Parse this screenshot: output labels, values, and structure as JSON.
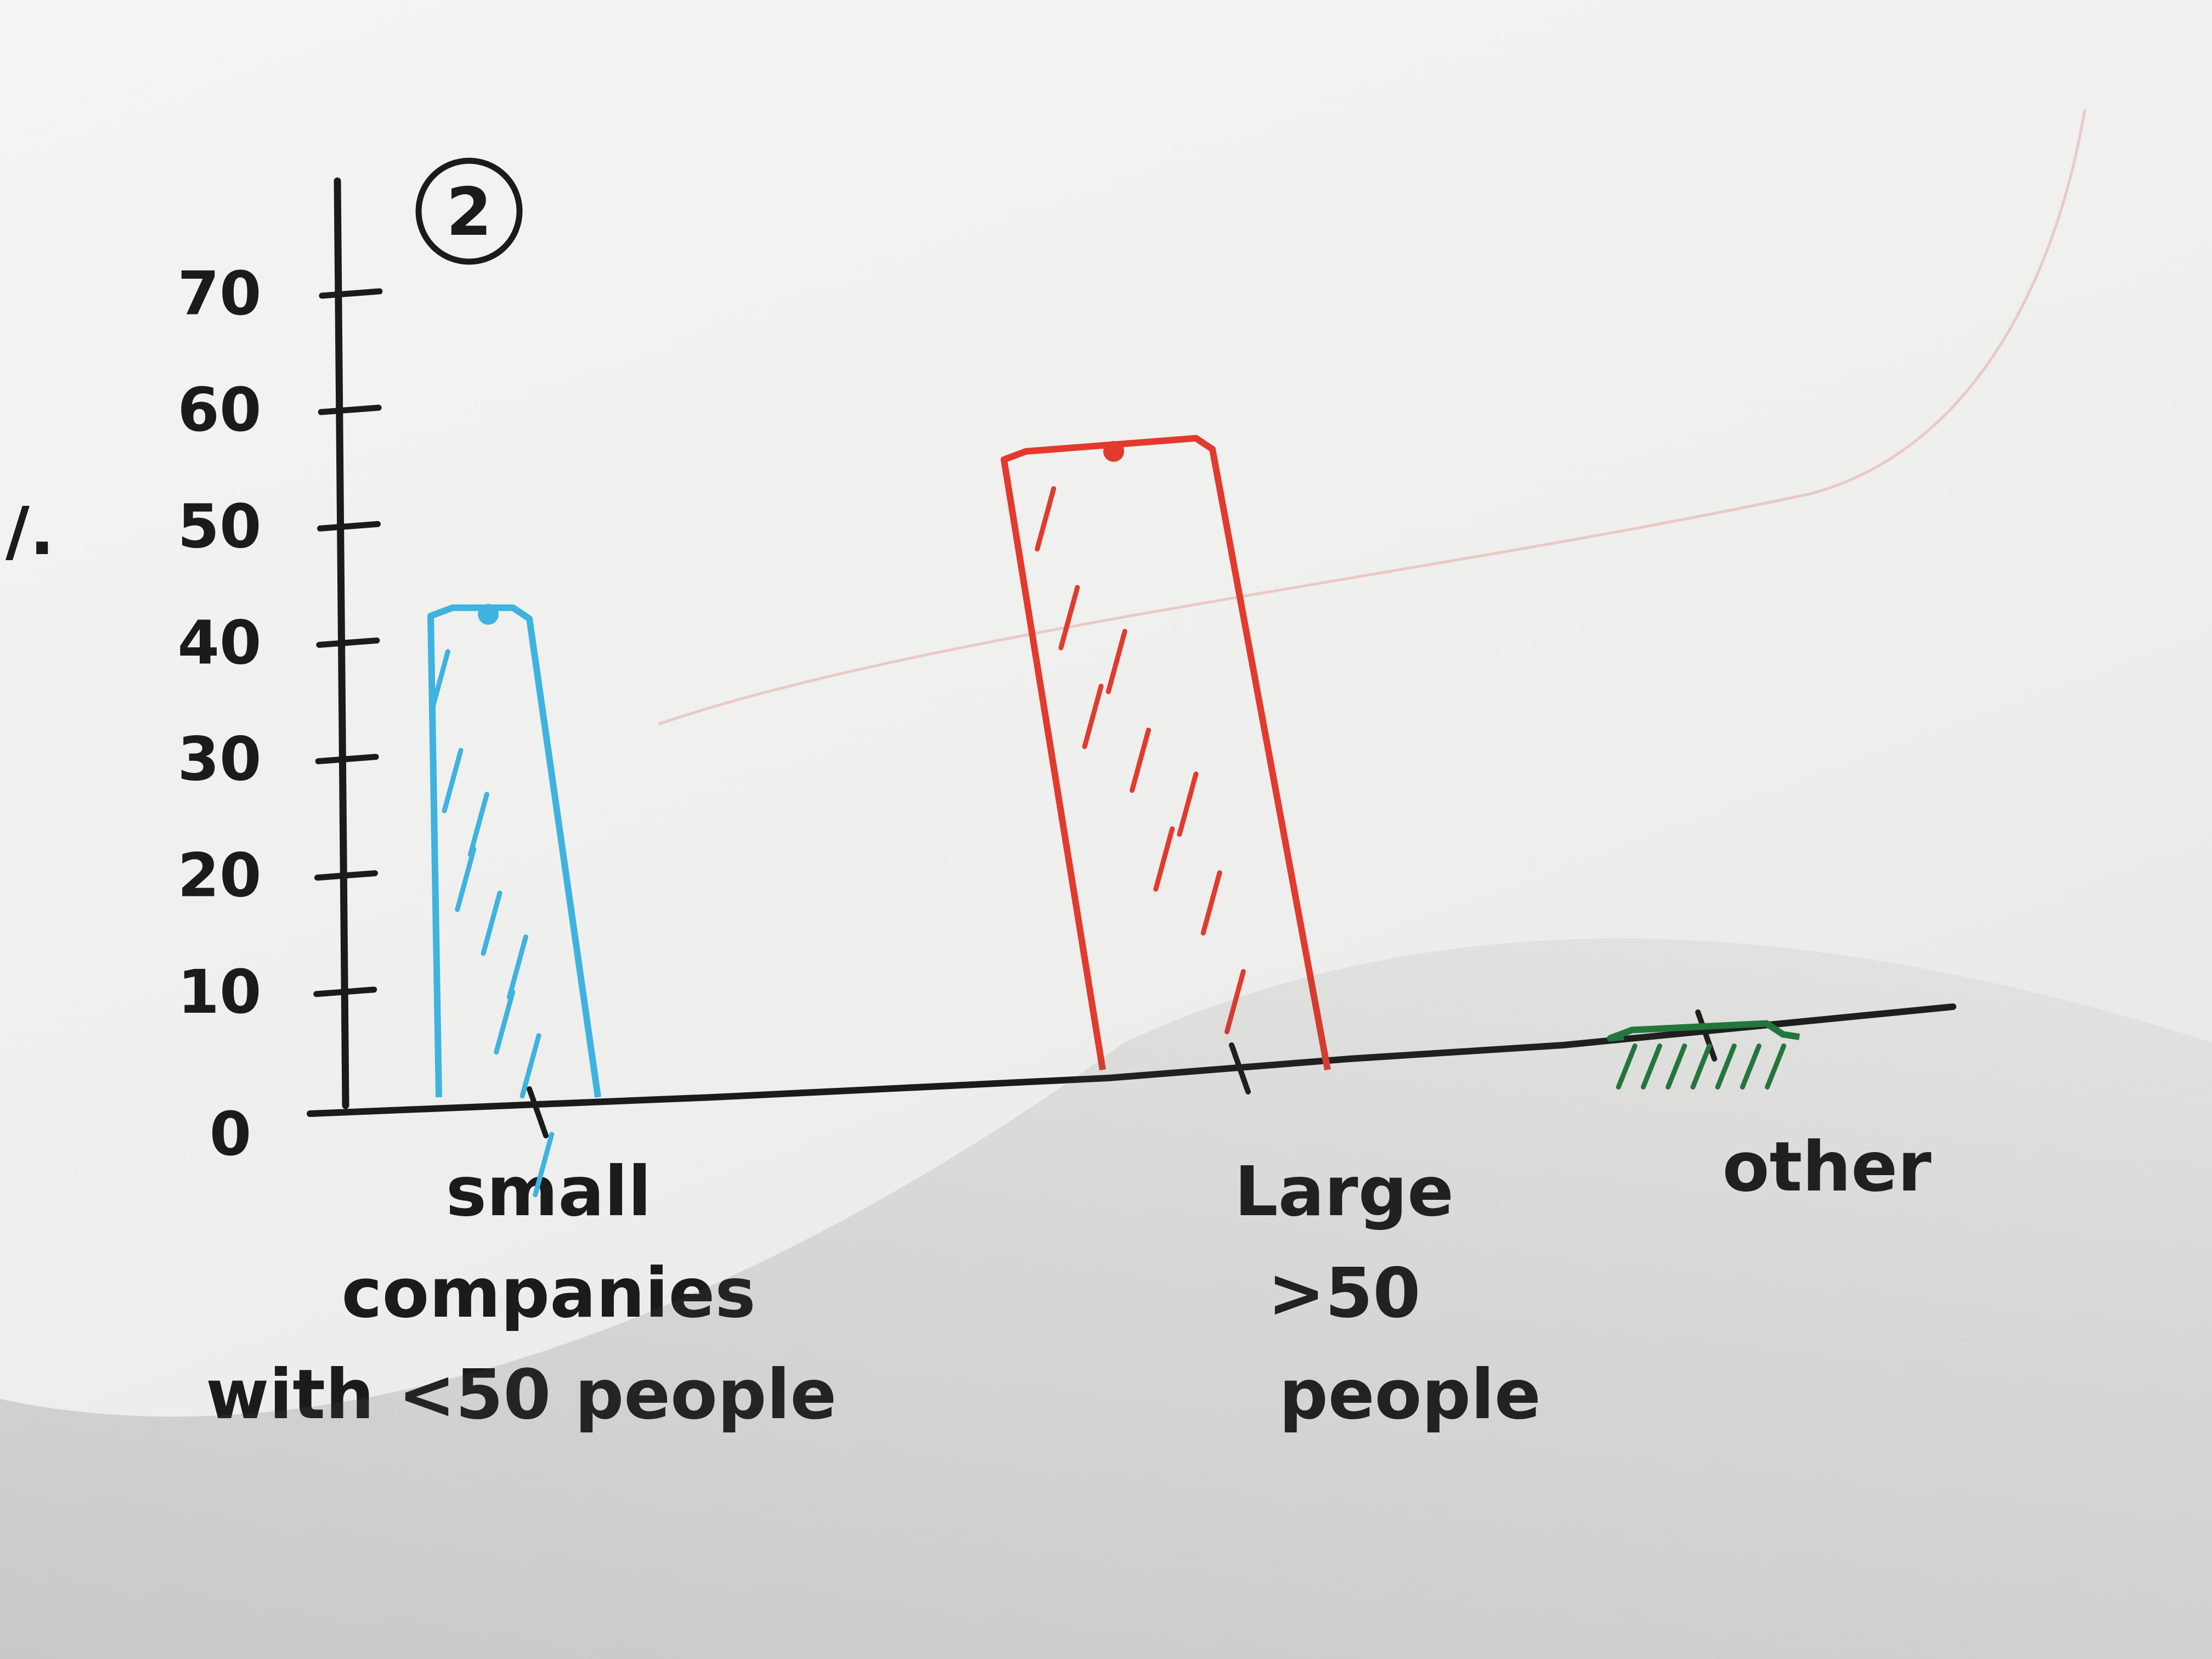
{
  "page": {
    "marker": "2",
    "margin_mark": "/."
  },
  "chart_data": {
    "type": "bar",
    "categories": [
      [
        "small",
        "companies",
        "with <50 people"
      ],
      [
        "Large",
        ">50",
        "people"
      ],
      [
        "other"
      ]
    ],
    "values": [
      43,
      57,
      7
    ],
    "bar_colors": [
      "#3fb3e0",
      "#e23a2e",
      "#1f7a3a"
    ],
    "ylim": [
      0,
      70
    ],
    "yticks": [
      0,
      10,
      20,
      30,
      40,
      50,
      60,
      70
    ],
    "grid": false,
    "legend": "none",
    "style": "hand-drawn"
  }
}
